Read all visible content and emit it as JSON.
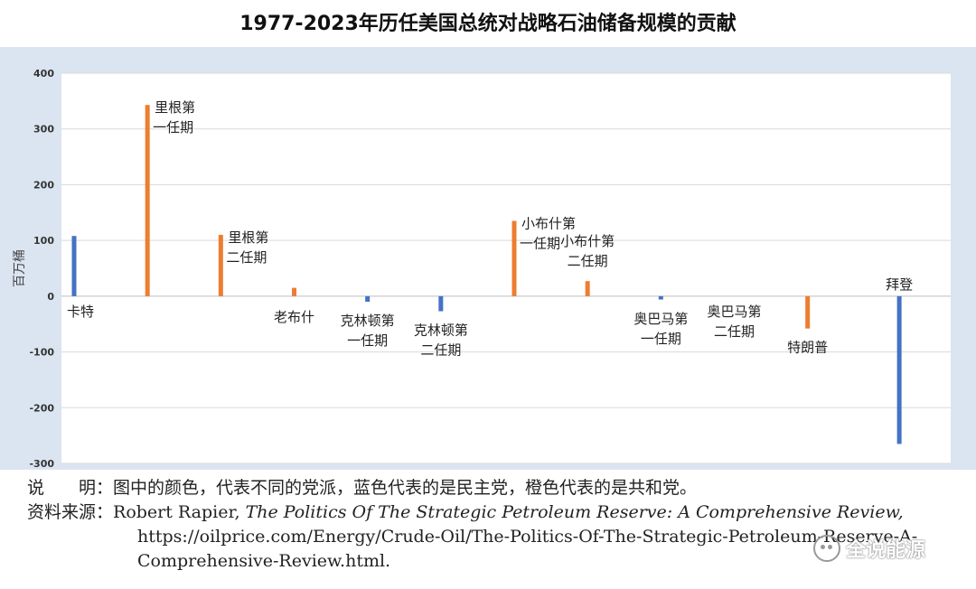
{
  "title": "1977-2023年历任美国总统对战略石油储备规模的贡献",
  "colors": {
    "democrat": "#4472c4",
    "republican": "#ed7d31",
    "plot_background": "#ffffff",
    "outer_background": "#dbe5f1",
    "grid": "#d9d9d9"
  },
  "chart_data": {
    "type": "bar",
    "ylabel": "百万桶",
    "ylim": [
      -300,
      400
    ],
    "yticks": [
      -300,
      -200,
      -100,
      0,
      100,
      200,
      300,
      400
    ],
    "grid": true,
    "categories": [
      "卡特",
      "里根第一任期",
      "里根第二任期",
      "老布什",
      "克林顿第一任期",
      "克林顿第二任期",
      "小布什第一任期",
      "小布什第二任期",
      "奥巴马第一任期",
      "奥巴马第二任期",
      "特朗普",
      "拜登"
    ],
    "label_lines": [
      [
        "卡特"
      ],
      [
        "里根第",
        "一任期"
      ],
      [
        "里根第",
        "二任期"
      ],
      [
        "老布什"
      ],
      [
        "克林顿第",
        "一任期"
      ],
      [
        "克林顿第",
        "二任期"
      ],
      [
        "小布什第",
        "一任期"
      ],
      [
        "小布什第",
        "二任期"
      ],
      [
        "奥巴马第",
        "一任期"
      ],
      [
        "奥巴马第",
        "二任期"
      ],
      [
        "特朗普"
      ],
      [
        "拜登"
      ]
    ],
    "parties": [
      "D",
      "R",
      "R",
      "R",
      "D",
      "D",
      "R",
      "R",
      "D",
      "D",
      "R",
      "D"
    ],
    "values": [
      108,
      343,
      110,
      15,
      -10,
      -27,
      135,
      27,
      -6,
      0,
      -58,
      -265
    ]
  },
  "notes": {
    "line1_label": "说　　明：",
    "line1_text": "图中的颜色，代表不同的党派，蓝色代表的是民主党，橙色代表的是共和党。",
    "line2_label": "资料来源：",
    "line2_author": "Robert Rapier, ",
    "line2_title": "The Politics Of The Strategic Petroleum Reserve: A Comprehensive Review,",
    "line3_url": "https://oilprice.com/Energy/Crude-Oil/The-Politics-Of-The-Strategic-Petroleum-Reserve-A-",
    "line4_url": "Comprehensive-Review.html."
  },
  "watermark": {
    "text": "全说能源",
    "icon": "wechat-icon"
  }
}
